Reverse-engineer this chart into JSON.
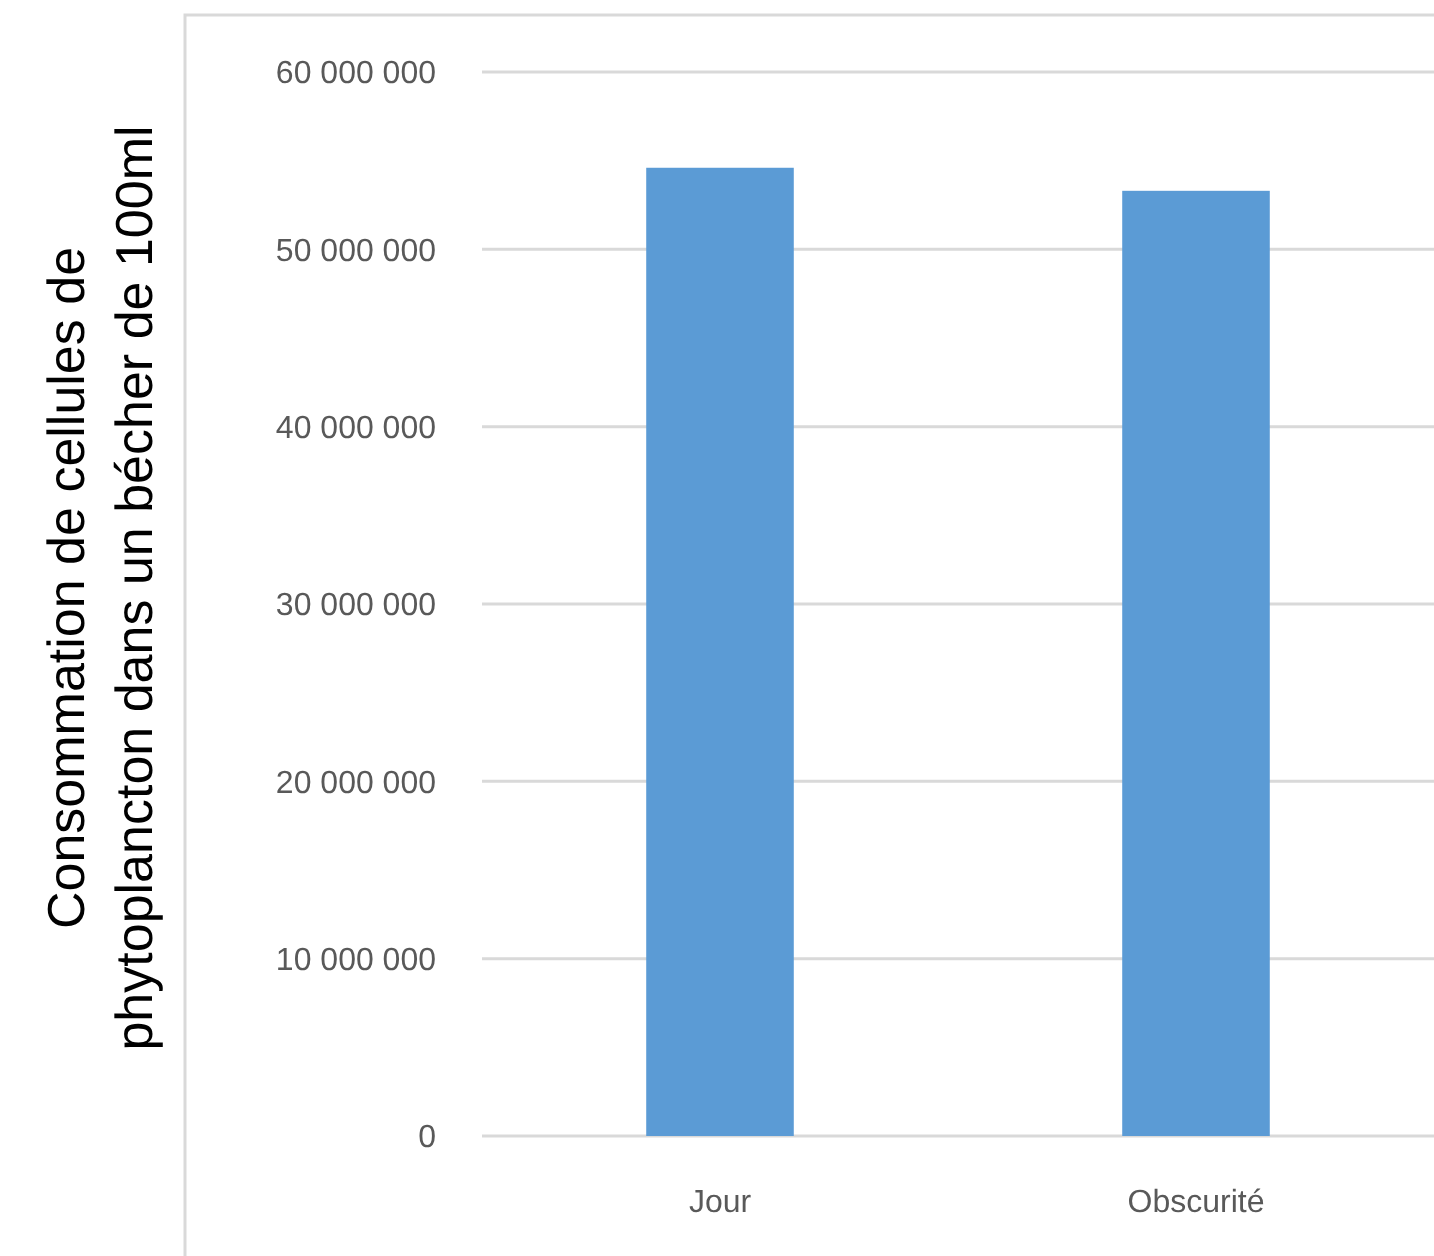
{
  "chart_data": {
    "type": "bar",
    "ylabel": "Consommation de cellules de\nphytoplancton dans un bécher de 100ml",
    "categories": [
      "Jour",
      "Obscurité"
    ],
    "values": [
      54600000,
      53300000
    ],
    "color": "#5b9bd5",
    "ylim": [
      0,
      60000000
    ],
    "yticks": [
      {
        "value": 0,
        "label": "0"
      },
      {
        "value": 10000000,
        "label": "10 000 000"
      },
      {
        "value": 20000000,
        "label": "20 000 000"
      },
      {
        "value": 30000000,
        "label": "30 000 000"
      },
      {
        "value": 40000000,
        "label": "40 000 000"
      },
      {
        "value": 50000000,
        "label": "50 000 000"
      },
      {
        "value": 60000000,
        "label": "60 000 000"
      }
    ],
    "grid": "y"
  }
}
